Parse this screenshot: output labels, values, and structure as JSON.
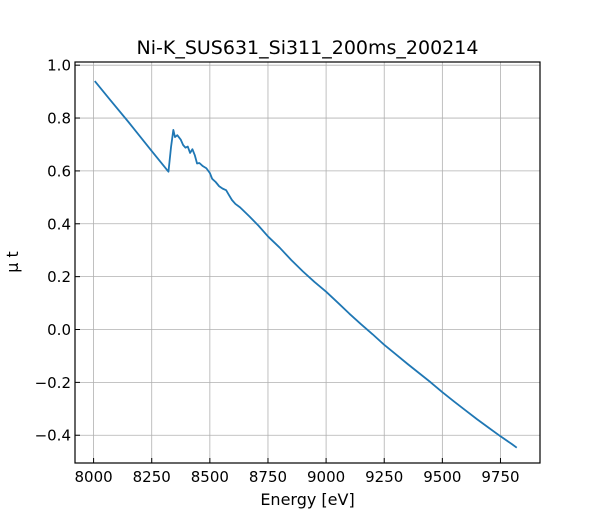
{
  "chart_data": {
    "type": "line",
    "title": "Ni-K_SUS631_Si311_200ms_200214",
    "xlabel": "Energy [eV]",
    "ylabel": "μ t",
    "xlim": [
      7920,
      9920
    ],
    "ylim": [
      -0.505,
      1.012
    ],
    "grid": true,
    "x_ticks": [
      8000,
      8250,
      8500,
      8750,
      9000,
      9250,
      9500,
      9750
    ],
    "y_ticks": [
      -0.4,
      -0.2,
      0.0,
      0.2,
      0.4,
      0.6,
      0.8,
      1.0
    ],
    "x_tick_labels": [
      "8000",
      "8250",
      "8500",
      "8750",
      "9000",
      "9250",
      "9500",
      "9750"
    ],
    "y_tick_labels": [
      "−0.4",
      "−0.2",
      "0.0",
      "0.2",
      "0.4",
      "0.6",
      "0.8",
      "1.0"
    ],
    "line_color": "#1f77b4",
    "series": [
      {
        "x": [
          8005,
          8070,
          8150,
          8250,
          8322,
          8333,
          8343,
          8350,
          8360,
          8375,
          8385,
          8395,
          8405,
          8415,
          8425,
          8435,
          8445,
          8455,
          8470,
          8485,
          8500,
          8510,
          8525,
          8540,
          8555,
          8570,
          8580,
          8595,
          8610,
          8630,
          8650,
          8670,
          8690,
          8710,
          8750,
          8800,
          8850,
          8900,
          8950,
          9000,
          9050,
          9100,
          9150,
          9200,
          9250,
          9300,
          9350,
          9400,
          9450,
          9500,
          9550,
          9600,
          9650,
          9700,
          9750,
          9800,
          9820
        ],
        "y": [
          0.94,
          0.87,
          0.785,
          0.675,
          0.597,
          0.69,
          0.755,
          0.728,
          0.735,
          0.718,
          0.698,
          0.688,
          0.692,
          0.668,
          0.682,
          0.66,
          0.628,
          0.63,
          0.618,
          0.61,
          0.592,
          0.57,
          0.558,
          0.542,
          0.533,
          0.527,
          0.512,
          0.49,
          0.475,
          0.462,
          0.445,
          0.428,
          0.41,
          0.392,
          0.352,
          0.31,
          0.263,
          0.22,
          0.18,
          0.143,
          0.102,
          0.06,
          0.02,
          -0.018,
          -0.058,
          -0.094,
          -0.13,
          -0.165,
          -0.2,
          -0.237,
          -0.272,
          -0.306,
          -0.34,
          -0.372,
          -0.404,
          -0.434,
          -0.447
        ]
      }
    ]
  }
}
